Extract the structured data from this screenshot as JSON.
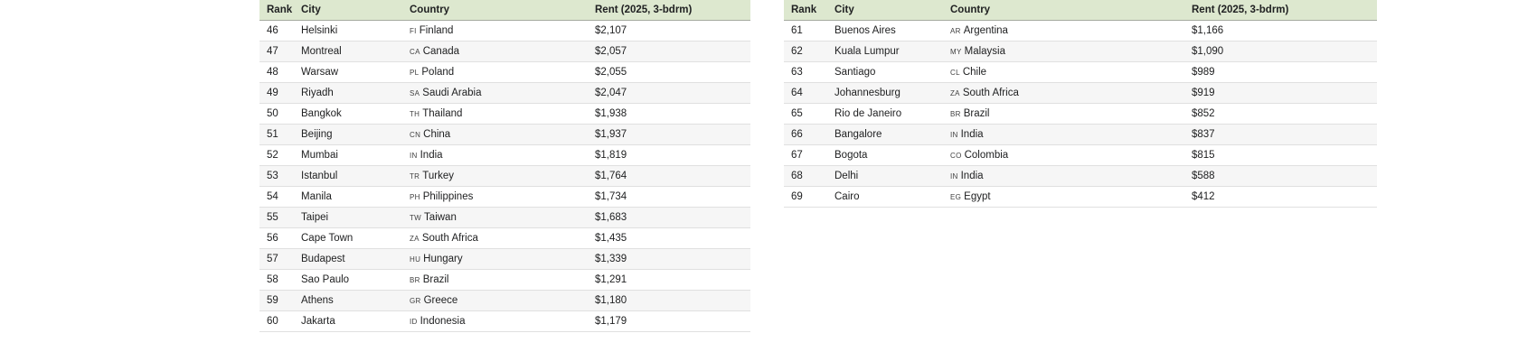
{
  "colors": {
    "header_bg": "#dde8cf",
    "stripe_bg": "#f6f6f6",
    "row_border": "#e0e0e0",
    "header_border": "#a5aba0",
    "text": "#202122",
    "code_text": "#404040"
  },
  "tables": [
    {
      "name": "ranks-46-60",
      "headers": {
        "rank": "Rank",
        "city": "City",
        "country": "Country",
        "rent": "Rent (2025, 3-bdrm)"
      },
      "rows": [
        {
          "rank": "46",
          "city": "Helsinki",
          "code": "FI",
          "country": "Finland",
          "rent": "$2,107"
        },
        {
          "rank": "47",
          "city": "Montreal",
          "code": "CA",
          "country": "Canada",
          "rent": "$2,057"
        },
        {
          "rank": "48",
          "city": "Warsaw",
          "code": "PL",
          "country": "Poland",
          "rent": "$2,055"
        },
        {
          "rank": "49",
          "city": "Riyadh",
          "code": "SA",
          "country": "Saudi Arabia",
          "rent": "$2,047"
        },
        {
          "rank": "50",
          "city": "Bangkok",
          "code": "TH",
          "country": "Thailand",
          "rent": "$1,938"
        },
        {
          "rank": "51",
          "city": "Beijing",
          "code": "CN",
          "country": "China",
          "rent": "$1,937"
        },
        {
          "rank": "52",
          "city": "Mumbai",
          "code": "IN",
          "country": "India",
          "rent": "$1,819"
        },
        {
          "rank": "53",
          "city": "Istanbul",
          "code": "TR",
          "country": "Turkey",
          "rent": "$1,764"
        },
        {
          "rank": "54",
          "city": "Manila",
          "code": "PH",
          "country": "Philippines",
          "rent": "$1,734"
        },
        {
          "rank": "55",
          "city": "Taipei",
          "code": "TW",
          "country": "Taiwan",
          "rent": "$1,683"
        },
        {
          "rank": "56",
          "city": "Cape Town",
          "code": "ZA",
          "country": "South Africa",
          "rent": "$1,435"
        },
        {
          "rank": "57",
          "city": "Budapest",
          "code": "HU",
          "country": "Hungary",
          "rent": "$1,339"
        },
        {
          "rank": "58",
          "city": "Sao Paulo",
          "code": "BR",
          "country": "Brazil",
          "rent": "$1,291"
        },
        {
          "rank": "59",
          "city": "Athens",
          "code": "GR",
          "country": "Greece",
          "rent": "$1,180"
        },
        {
          "rank": "60",
          "city": "Jakarta",
          "code": "ID",
          "country": "Indonesia",
          "rent": "$1,179"
        }
      ]
    },
    {
      "name": "ranks-61-69",
      "headers": {
        "rank": "Rank",
        "city": "City",
        "country": "Country",
        "rent": "Rent (2025, 3-bdrm)"
      },
      "rows": [
        {
          "rank": "61",
          "city": "Buenos Aires",
          "code": "AR",
          "country": "Argentina",
          "rent": "$1,166"
        },
        {
          "rank": "62",
          "city": "Kuala Lumpur",
          "code": "MY",
          "country": "Malaysia",
          "rent": "$1,090"
        },
        {
          "rank": "63",
          "city": "Santiago",
          "code": "CL",
          "country": "Chile",
          "rent": "$989"
        },
        {
          "rank": "64",
          "city": "Johannesburg",
          "code": "ZA",
          "country": "South Africa",
          "rent": "$919"
        },
        {
          "rank": "65",
          "city": "Rio de Janeiro",
          "code": "BR",
          "country": "Brazil",
          "rent": "$852"
        },
        {
          "rank": "66",
          "city": "Bangalore",
          "code": "IN",
          "country": "India",
          "rent": "$837"
        },
        {
          "rank": "67",
          "city": "Bogota",
          "code": "CO",
          "country": "Colombia",
          "rent": "$815"
        },
        {
          "rank": "68",
          "city": "Delhi",
          "code": "IN",
          "country": "India",
          "rent": "$588"
        },
        {
          "rank": "69",
          "city": "Cairo",
          "code": "EG",
          "country": "Egypt",
          "rent": "$412"
        }
      ]
    }
  ]
}
